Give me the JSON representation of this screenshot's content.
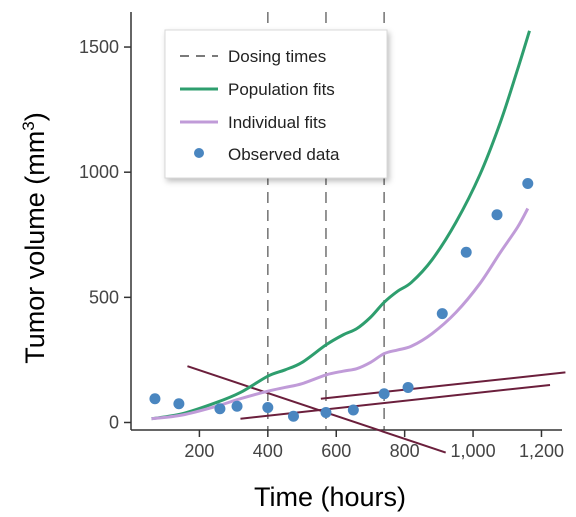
{
  "chart_data": {
    "type": "line",
    "xlabel": "Time (hours)",
    "ylabel": "Tumor volume (mm",
    "ylabel_sup": "3",
    "ylabel_close": ")",
    "xlim": [
      0,
      1260
    ],
    "ylim": [
      -30,
      1640
    ],
    "x_ticks": [
      200,
      400,
      600,
      800,
      1000,
      1200
    ],
    "x_tick_labels": [
      "200",
      "400",
      "600",
      "800",
      "1,000",
      "1,200"
    ],
    "y_ticks": [
      0,
      500,
      1000,
      1500
    ],
    "y_tick_labels": [
      "0",
      "500",
      "1000",
      "1500"
    ],
    "grid": false,
    "legend_position": "top-left",
    "dosing_times": [
      400,
      570,
      740
    ],
    "series": [
      {
        "name": "Dosing times",
        "kind": "dashed-vline",
        "color": "#7a7a7a"
      },
      {
        "name": "Population fits",
        "kind": "line",
        "color": "#2e9e6e",
        "x": [
          60,
          150,
          250,
          320,
          400,
          450,
          500,
          570,
          620,
          660,
          700,
          740,
          780,
          820,
          880,
          950,
          1020,
          1080,
          1130,
          1165
        ],
        "y": [
          15,
          35,
          80,
          120,
          185,
          210,
          240,
          310,
          350,
          375,
          420,
          480,
          525,
          560,
          650,
          800,
          990,
          1200,
          1410,
          1565
        ]
      },
      {
        "name": "Individual fits",
        "kind": "line",
        "color": "#c09bd8",
        "x": [
          60,
          150,
          250,
          320,
          400,
          450,
          500,
          570,
          620,
          660,
          700,
          740,
          780,
          820,
          880,
          950,
          1020,
          1080,
          1130,
          1160
        ],
        "y": [
          15,
          30,
          65,
          95,
          125,
          140,
          155,
          190,
          205,
          215,
          240,
          275,
          290,
          305,
          355,
          440,
          555,
          680,
          780,
          855
        ]
      },
      {
        "name": "Observed data",
        "kind": "scatter",
        "color": "#4a86c0",
        "x": [
          70,
          140,
          260,
          310,
          400,
          475,
          570,
          650,
          740,
          810,
          910,
          980,
          1070,
          1160
        ],
        "y": [
          95,
          75,
          55,
          65,
          60,
          25,
          40,
          50,
          115,
          140,
          435,
          680,
          830,
          955
        ]
      }
    ],
    "annotations": {
      "color": "#6b1f3c",
      "lines": [
        {
          "x": [
            165,
            920
          ],
          "y": [
            225,
            -120
          ]
        },
        {
          "x": [
            320,
            1225
          ],
          "y": [
            15,
            150
          ]
        },
        {
          "x": [
            555,
            1270
          ],
          "y": [
            95,
            200
          ]
        }
      ]
    }
  }
}
